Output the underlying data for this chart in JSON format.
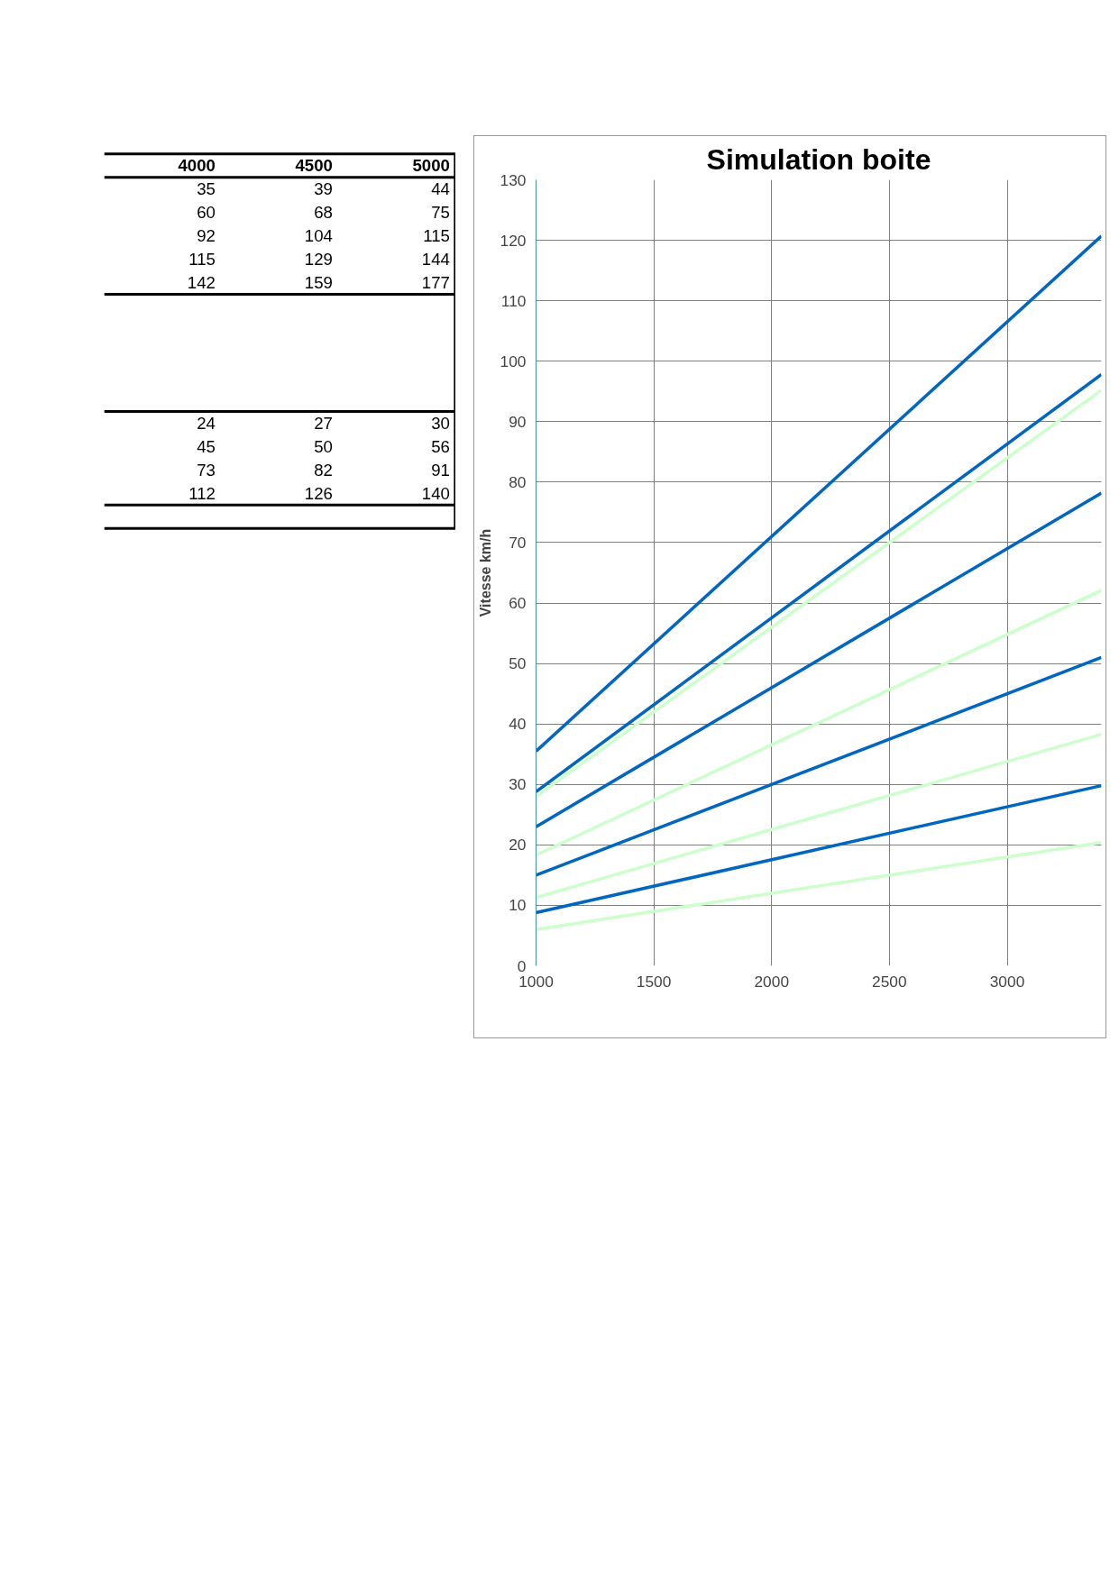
{
  "chart_data": [
    {
      "type": "other",
      "data_labels": true,
      "categories": [
        "4000",
        "4500",
        "5000"
      ],
      "series": [
        {
          "values": [
            35,
            39,
            44
          ]
        },
        {
          "values": [
            60,
            68,
            75
          ]
        },
        {
          "values": [
            92,
            104,
            115
          ]
        },
        {
          "values": [
            115,
            129,
            144
          ]
        },
        {
          "values": [
            142,
            159,
            177
          ]
        },
        {
          "values": [
            null,
            null,
            null
          ]
        },
        {
          "values": [
            null,
            null,
            null
          ]
        },
        {
          "values": [
            null,
            null,
            null
          ]
        },
        {
          "values": [
            null,
            null,
            null
          ]
        },
        {
          "values": [
            null,
            null,
            null
          ]
        },
        {
          "values": [
            24,
            27,
            30
          ]
        },
        {
          "values": [
            45,
            50,
            56
          ]
        },
        {
          "values": [
            73,
            82,
            91
          ]
        },
        {
          "values": [
            112,
            126,
            140
          ]
        },
        {
          "values": [
            null,
            null,
            null
          ]
        }
      ]
    },
    {
      "type": "line",
      "title": "Simulation boite",
      "ylabel": "Vitesse km/h",
      "xlim": [
        1000,
        3400
      ],
      "ylim": [
        0,
        130
      ],
      "xticks": [
        1000,
        1500,
        2000,
        2500,
        3000
      ],
      "yticks": [
        0,
        10,
        20,
        30,
        40,
        50,
        60,
        70,
        80,
        90,
        100,
        110,
        120,
        130
      ],
      "grid": true,
      "line_style": "solid",
      "x": [
        1000,
        3400
      ],
      "series": [
        {
          "color": "#0066c0",
          "values": [
            35.5,
            120.7
          ]
        },
        {
          "color": "#0066c0",
          "values": [
            28.8,
            97.8
          ]
        },
        {
          "color": "#0066c0",
          "values": [
            23,
            78.2
          ]
        },
        {
          "color": "#0066c0",
          "values": [
            15,
            51
          ]
        },
        {
          "color": "#0066c0",
          "values": [
            8.8,
            29.8
          ]
        },
        {
          "color": "#ccffcc",
          "values": [
            28,
            95.2
          ]
        },
        {
          "color": "#ccffcc",
          "values": [
            18.3,
            62.1
          ]
        },
        {
          "color": "#ccffcc",
          "values": [
            11.3,
            38.3
          ]
        },
        {
          "color": "#ccffcc",
          "values": [
            6,
            20.4
          ]
        }
      ]
    }
  ]
}
